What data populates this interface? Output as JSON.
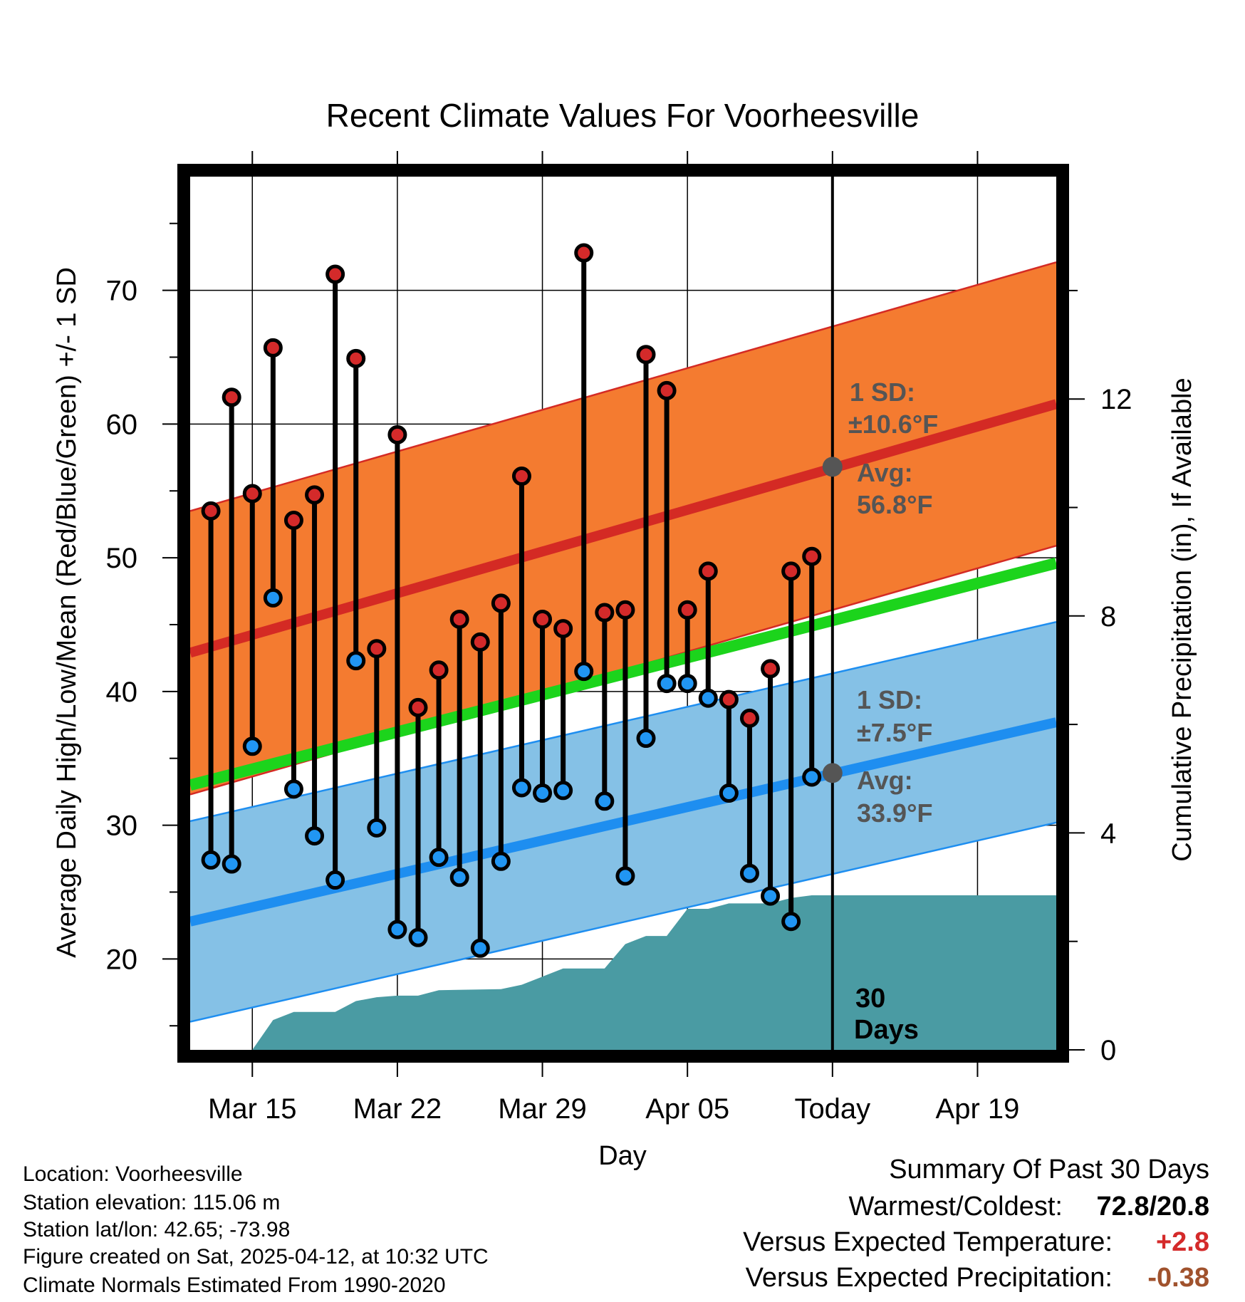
{
  "chart_data": {
    "type": "line",
    "title": "Recent Climate Values For Voorheesville",
    "xlabel": "Day",
    "ylabel_left": "Average Daily High/Low/Mean (Red/Blue/Green) +/- 1 SD",
    "ylabel_right": "Cumulative Precipitation (in), If Available",
    "x_ticks": [
      {
        "day": 3,
        "label": "Mar 15"
      },
      {
        "day": 10,
        "label": "Mar 22"
      },
      {
        "day": 17,
        "label": "Mar 29"
      },
      {
        "day": 24,
        "label": "Apr 05"
      },
      {
        "day": 31,
        "label": "Today"
      },
      {
        "day": 38,
        "label": "Apr 19"
      }
    ],
    "xlim": [
      0,
      41.8
    ],
    "ylim_left": [
      13.2,
      78.5
    ],
    "y_ticks_left": [
      20,
      30,
      40,
      50,
      60,
      70
    ],
    "ylim_right": [
      0,
      16.1
    ],
    "y_ticks_right": [
      0,
      4,
      8,
      12
    ],
    "today_day": 31,
    "daily_highs": [
      53.5,
      62,
      54.8,
      65.7,
      52.8,
      54.7,
      71.2,
      64.9,
      43.2,
      59.2,
      38.8,
      41.6,
      45.4,
      43.7,
      46.6,
      56.1,
      45.4,
      44.7,
      72.8,
      45.9,
      46.1,
      65.2,
      62.5,
      46.1,
      49.0,
      39.4,
      38.0,
      41.7,
      49.0,
      50.1
    ],
    "daily_lows": [
      27.4,
      27.1,
      35.9,
      47.0,
      32.7,
      29.2,
      25.9,
      42.3,
      29.8,
      22.2,
      21.6,
      27.6,
      26.1,
      20.8,
      27.3,
      32.8,
      32.4,
      32.6,
      41.5,
      31.8,
      26.2,
      36.5,
      40.6,
      40.6,
      39.5,
      32.4,
      26.4,
      24.7,
      22.8,
      33.6
    ],
    "normal_high": {
      "start": 42.9,
      "end": 61.5,
      "sd": 10.6
    },
    "normal_low": {
      "start": 22.8,
      "end": 37.7,
      "sd": 7.5
    },
    "normal_mean": {
      "start": 33.0,
      "end": 49.6
    },
    "precip_cumulative": [
      {
        "day": 3.0,
        "value": 0.0
      },
      {
        "day": 4.0,
        "value": 0.55
      },
      {
        "day": 5.0,
        "value": 0.7
      },
      {
        "day": 7.0,
        "value": 0.7
      },
      {
        "day": 8.0,
        "value": 0.9
      },
      {
        "day": 9.0,
        "value": 0.97
      },
      {
        "day": 10.0,
        "value": 1.0
      },
      {
        "day": 11.0,
        "value": 1.0
      },
      {
        "day": 12.0,
        "value": 1.1
      },
      {
        "day": 15.0,
        "value": 1.12
      },
      {
        "day": 16.0,
        "value": 1.2
      },
      {
        "day": 17.0,
        "value": 1.35
      },
      {
        "day": 18.0,
        "value": 1.5
      },
      {
        "day": 20.0,
        "value": 1.5
      },
      {
        "day": 21.0,
        "value": 1.95
      },
      {
        "day": 22.0,
        "value": 2.1
      },
      {
        "day": 23.0,
        "value": 2.1
      },
      {
        "day": 24.0,
        "value": 2.6
      },
      {
        "day": 25.0,
        "value": 2.6
      },
      {
        "day": 26.0,
        "value": 2.7
      },
      {
        "day": 28.0,
        "value": 2.7
      },
      {
        "day": 29.0,
        "value": 2.8
      },
      {
        "day": 30.0,
        "value": 2.85
      },
      {
        "day": 41.8,
        "value": 2.85
      }
    ],
    "annotations": {
      "high_sd_line1": "1 SD:",
      "high_sd_line2": "±10.6°F",
      "high_avg_line1": "Avg:",
      "high_avg_line2": "56.8°F",
      "high_avg_value": 56.8,
      "low_sd_line1": "1 SD:",
      "low_sd_line2": "±7.5°F",
      "low_avg_line1": "Avg:",
      "low_avg_line2": "33.9°F",
      "low_avg_value": 33.9,
      "days_line1": "30",
      "days_line2": "Days"
    }
  },
  "info": {
    "location": "Location: Voorheesville",
    "elevation": "Station elevation: 115.06 m",
    "latlon": "Station lat/lon: 42.65; -73.98",
    "created": "Figure created on Sat, 2025-04-12, at 10:32 UTC",
    "normals": "Climate Normals Estimated From 1990-2020"
  },
  "summary": {
    "heading": "Summary Of Past 30 Days",
    "warm_cold_label": "Warmest/Coldest:",
    "warm_cold_value": "72.8/20.8",
    "temp_label": "Versus Expected Temperature:",
    "temp_value": "+2.8",
    "precip_label": "Versus Expected Precipitation:",
    "precip_value": "-0.38"
  },
  "colors": {
    "high_band": "#F47B30",
    "high_line": "#D42A24",
    "low_band": "#85C1E6",
    "low_line": "#1E8EF0",
    "mean_line": "#1CD41C",
    "precip": "#4A9BA3",
    "high_dot": "#D42A2A",
    "low_dot": "#2196F3",
    "annotation": "#555555",
    "temp_value": "#D42A2A",
    "precip_value": "#A0522D"
  }
}
